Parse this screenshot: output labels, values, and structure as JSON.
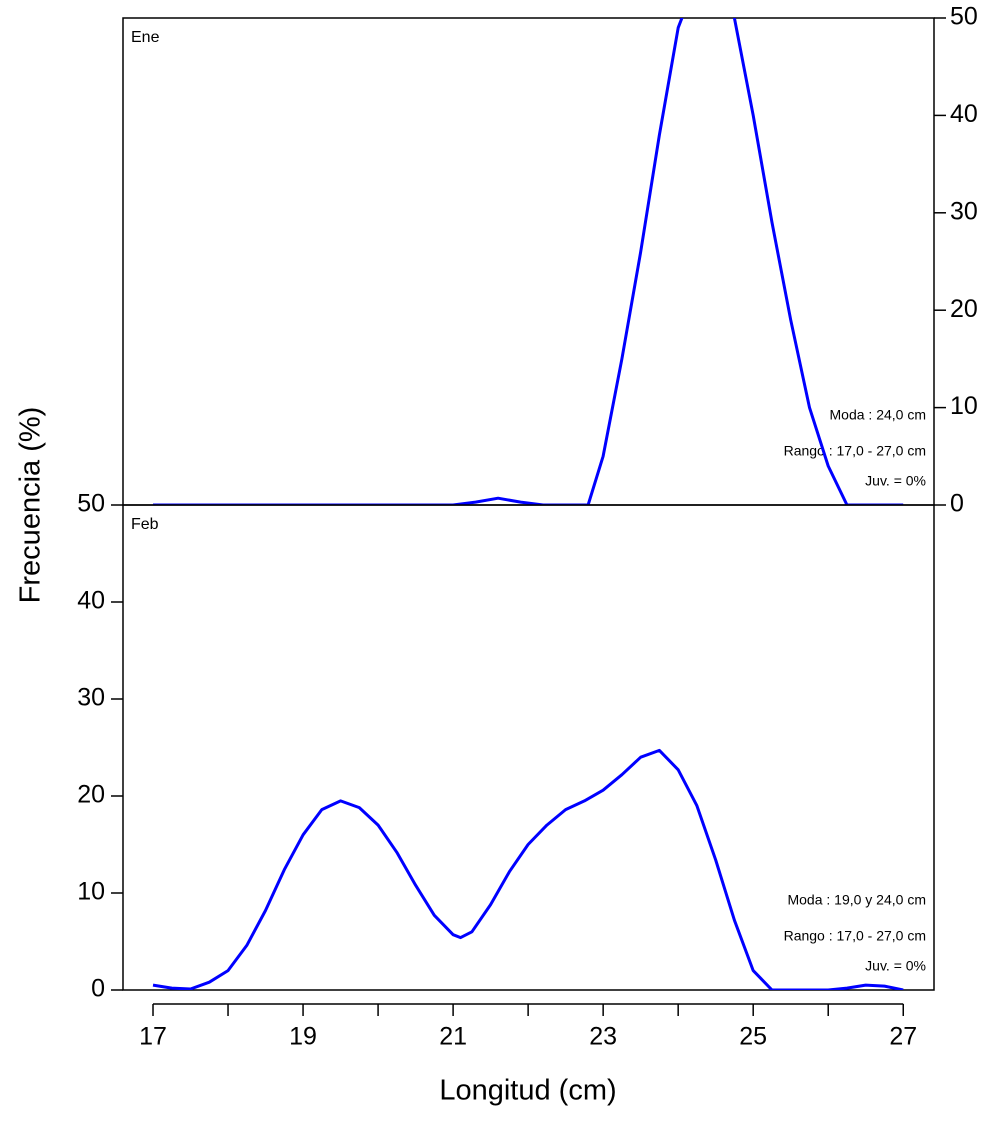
{
  "chart_data": [
    {
      "type": "line",
      "panel_label": "Ene",
      "ylabel": "Frecuencia (%)",
      "yaxis_side": "right",
      "xlim": [
        16.6,
        27.41
      ],
      "ylim": [
        0,
        50
      ],
      "yticks": [
        0,
        10,
        20,
        30,
        40,
        50
      ],
      "x": [
        17,
        17.5,
        18,
        18.5,
        19,
        19.5,
        20,
        20.5,
        21,
        21.3,
        21.6,
        21.9,
        22.2,
        22.5,
        22.8,
        23,
        23.25,
        23.5,
        23.75,
        24,
        24.25,
        24.5,
        24.75,
        25,
        25.25,
        25.5,
        25.75,
        26,
        26.25,
        26.5,
        27
      ],
      "series": [
        {
          "name": "Ene",
          "color": "#0000ff",
          "values": [
            0,
            0,
            0,
            0,
            0,
            0,
            0,
            0,
            0,
            0.3,
            0.7,
            0.3,
            0,
            0,
            0,
            5,
            15,
            26,
            38,
            49,
            54,
            55,
            50,
            40,
            29,
            19,
            10,
            4,
            0,
            0,
            0
          ]
        }
      ],
      "annotations": [
        "Moda : 24,0 cm",
        "Rango : 17,0 - 27,0 cm",
        "Juv. = 0%"
      ]
    },
    {
      "type": "line",
      "panel_label": "Feb",
      "xlabel": "Longitud (cm)",
      "yaxis_side": "left",
      "xlim": [
        16.6,
        27.41
      ],
      "ylim": [
        0,
        50
      ],
      "yticks": [
        0,
        10,
        20,
        30,
        40,
        50
      ],
      "xticks": [
        17,
        19,
        21,
        23,
        25,
        27
      ],
      "xminor_ticks": [
        18,
        20,
        22,
        24,
        26
      ],
      "x": [
        17,
        17.25,
        17.5,
        17.75,
        18,
        18.25,
        18.5,
        18.75,
        19,
        19.25,
        19.5,
        19.75,
        20,
        20.25,
        20.5,
        20.75,
        21,
        21.1,
        21.25,
        21.5,
        21.75,
        22,
        22.25,
        22.5,
        22.75,
        23,
        23.25,
        23.5,
        23.75,
        24,
        24.25,
        24.5,
        24.75,
        25,
        25.25,
        25.5,
        26,
        26.25,
        26.5,
        26.75,
        27
      ],
      "series": [
        {
          "name": "Feb",
          "color": "#0000ff",
          "values": [
            0.5,
            0.2,
            0.1,
            0.8,
            2,
            4.6,
            8.2,
            12.4,
            16,
            18.6,
            19.5,
            18.8,
            17,
            14.2,
            10.8,
            7.7,
            5.7,
            5.4,
            6,
            8.8,
            12.2,
            15,
            17,
            18.6,
            19.5,
            20.6,
            22.2,
            24,
            24.7,
            22.7,
            19,
            13.4,
            7.2,
            2,
            0,
            0,
            0,
            0.2,
            0.5,
            0.4,
            0
          ]
        }
      ],
      "annotations": [
        "Moda : 19,0 y 24,0 cm",
        "Rango : 17,0 - 27,0 cm",
        "Juv. = 0%"
      ]
    }
  ]
}
